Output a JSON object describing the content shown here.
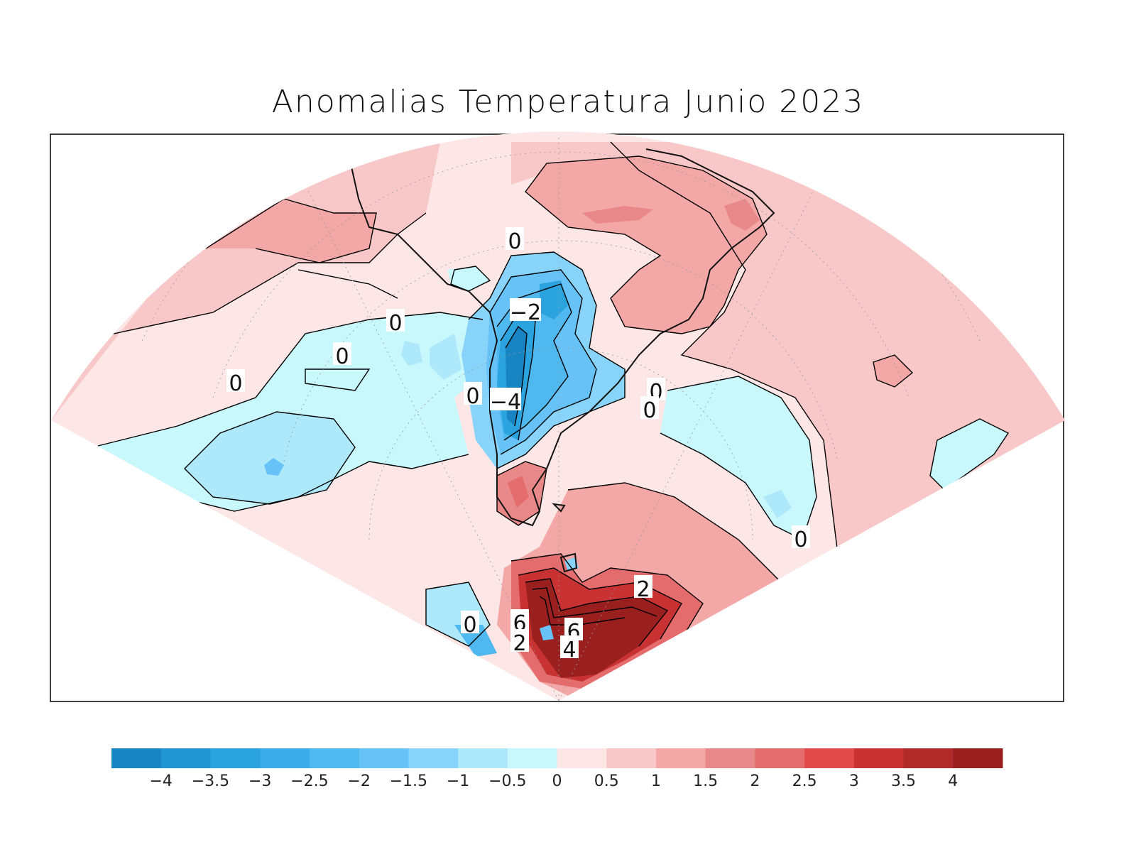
{
  "title": "Anomalias Temperatura Junio 2023",
  "palette": {
    "levels": [
      "-4",
      "-3.5",
      "-3",
      "-2.5",
      "-2",
      "-1.5",
      "-1",
      "-0.5",
      "0",
      "0.5",
      "1",
      "1.5",
      "2",
      "2.5",
      "3",
      "3.5",
      "4"
    ],
    "colors": [
      "#1884c1",
      "#2196d3",
      "#2aa3df",
      "#3aace7",
      "#4fb8ef",
      "#66c2f7",
      "#88d3fa",
      "#ade8fb",
      "#c8f7fc",
      "#fde6e6",
      "#f8c8c8",
      "#f3a7a7",
      "#e98888",
      "#e56c6c",
      "#e14a4a",
      "#c83232",
      "#b32a2a",
      "#9a2020"
    ]
  },
  "contour_labels": [
    "0",
    "−2",
    "0",
    "0",
    "0",
    "0",
    "−4",
    "0",
    "0",
    "0",
    "0",
    "2",
    "6",
    "2",
    "6",
    "4"
  ],
  "chart_data": {
    "type": "heatmap",
    "title": "Anomalias Temperatura Junio 2023",
    "colorbar_levels": [
      -4,
      -3.5,
      -3,
      -2.5,
      -2,
      -1.5,
      -1,
      -0.5,
      0,
      0.5,
      1,
      1.5,
      2,
      2.5,
      3,
      3.5,
      4
    ],
    "colorbar_colors": [
      "#1884c1",
      "#2196d3",
      "#2aa3df",
      "#3aace7",
      "#4fb8ef",
      "#66c2f7",
      "#88d3fa",
      "#ade8fb",
      "#c8f7fc",
      "#fde6e6",
      "#f8c8c8",
      "#f3a7a7",
      "#e98888",
      "#e56c6c",
      "#e14a4a",
      "#c83232",
      "#b32a2a",
      "#9a2020"
    ],
    "projection": "polar sector (South America / South Atlantic / Antarctica)",
    "contour_labels": [
      "0",
      "-2",
      "-4",
      "2",
      "4",
      "6"
    ]
  }
}
